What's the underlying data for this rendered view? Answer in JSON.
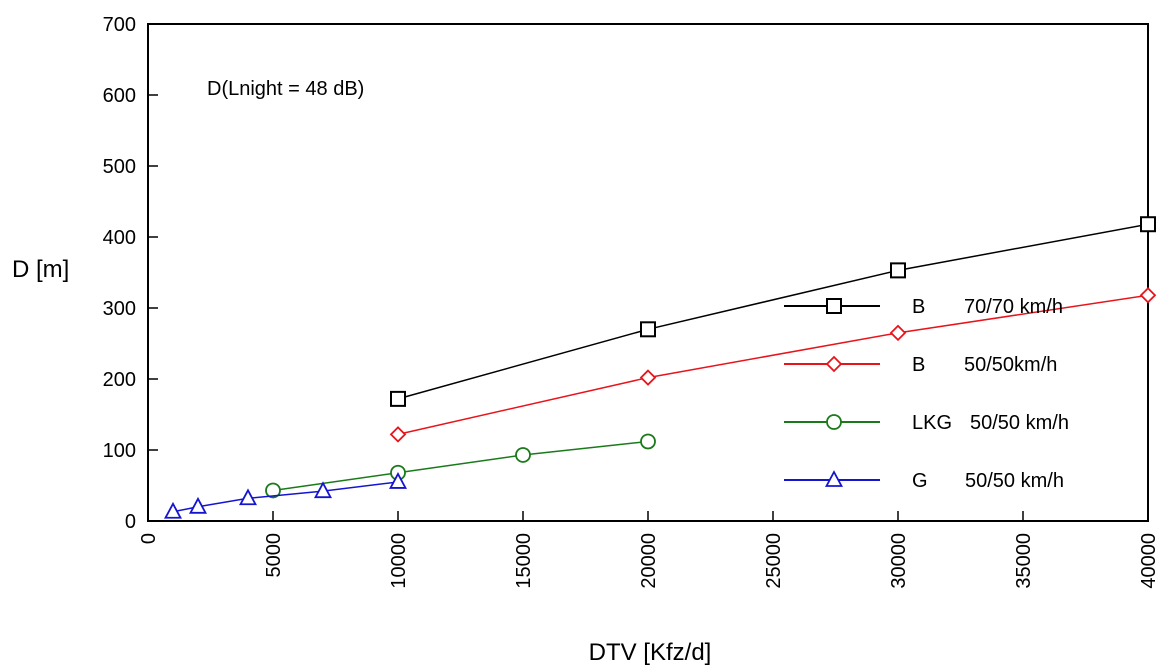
{
  "chart_data": {
    "type": "line",
    "xlabel": "DTV [Kfz/d]",
    "ylabel": "D [m]",
    "annotation": "D(Lnight = 48 dB)",
    "xlim": [
      0,
      40000
    ],
    "ylim": [
      0,
      700
    ],
    "xticks": [
      0,
      5000,
      10000,
      15000,
      20000,
      25000,
      30000,
      35000,
      40000
    ],
    "yticks": [
      0,
      100,
      200,
      300,
      400,
      500,
      600,
      700
    ],
    "grid": false,
    "legend_position": "right-middle",
    "series": [
      {
        "name_prefix": "B",
        "name_suffix": "70/70 km/h",
        "color": "#000000",
        "marker": "square",
        "points": [
          [
            10000,
            172
          ],
          [
            20000,
            270
          ],
          [
            30000,
            353
          ],
          [
            40000,
            418
          ]
        ]
      },
      {
        "name_prefix": "B",
        "name_suffix": "50/50km/h",
        "color": "#e8141b",
        "marker": "diamond",
        "points": [
          [
            10000,
            122
          ],
          [
            20000,
            202
          ],
          [
            30000,
            265
          ],
          [
            40000,
            318
          ]
        ]
      },
      {
        "name_prefix": "LKG",
        "name_suffix": "50/50 km/h",
        "color": "#1a7a1a",
        "marker": "circle",
        "points": [
          [
            5000,
            43
          ],
          [
            10000,
            68
          ],
          [
            15000,
            93
          ],
          [
            20000,
            112
          ]
        ]
      },
      {
        "name_prefix": "G",
        "name_suffix": "50/50 km/h",
        "color": "#1515d0",
        "marker": "triangle",
        "points": [
          [
            1000,
            13
          ],
          [
            2000,
            20
          ],
          [
            4000,
            32
          ],
          [
            7000,
            42
          ],
          [
            10000,
            55
          ]
        ]
      }
    ]
  }
}
